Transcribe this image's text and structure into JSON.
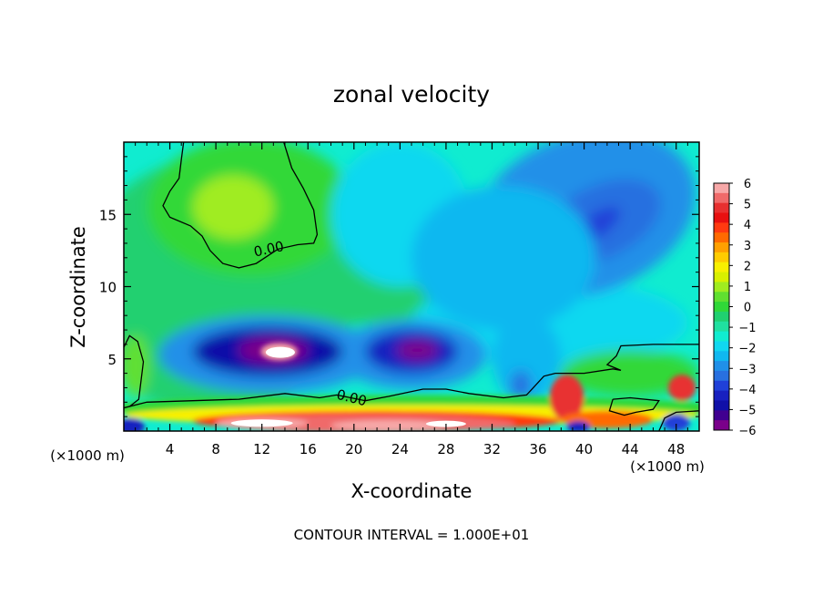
{
  "chart_data": {
    "type": "heatmap",
    "title": "zonal velocity",
    "xlabel": "X-coordinate",
    "ylabel": "Z-coordinate",
    "x_unit_note_left": "(×1000 m)",
    "x_unit_note_right": "(×1000 m)",
    "footer": "CONTOUR INTERVAL = 1.000E+01",
    "xlim": [
      0,
      50
    ],
    "ylim": [
      0,
      20
    ],
    "x_ticks": [
      4,
      8,
      12,
      16,
      20,
      24,
      28,
      32,
      36,
      40,
      44,
      48
    ],
    "y_ticks": [
      5,
      10,
      15
    ],
    "contour_labels": [
      {
        "text": "0.00",
        "x": 12.6,
        "y": 12.6
      },
      {
        "text": "0.00",
        "x": 19.8,
        "y": 2.3
      }
    ],
    "colorbar": {
      "ticks": [
        "6",
        "5",
        "4",
        "3",
        "2",
        "1",
        "0",
        "−1",
        "−2",
        "−3",
        "−4",
        "−5",
        "−6"
      ],
      "levels": [
        6,
        5.5,
        5,
        4.5,
        4,
        3.5,
        3,
        2.5,
        2,
        1.5,
        1,
        0.5,
        0,
        -0.5,
        -1,
        -1.5,
        -2,
        -2.5,
        -3,
        -3.5,
        -4,
        -4.5,
        -5,
        -5.5,
        -6
      ],
      "colors": [
        "#f7a8a8",
        "#f06a6a",
        "#e83030",
        "#e81010",
        "#ff3a10",
        "#ff6a00",
        "#ffa000",
        "#ffcc00",
        "#f8f000",
        "#d8f000",
        "#a0ec20",
        "#60e030",
        "#30d838",
        "#20d070",
        "#20e0a0",
        "#10ecd0",
        "#10d8f0",
        "#10b8f0",
        "#2090e8",
        "#2870e0",
        "#2040d8",
        "#1820c0",
        "#1010a8",
        "#400090",
        "#7a008a"
      ]
    },
    "features": [
      {
        "name": "upper-positive-region",
        "x": 10,
        "y": 15.5,
        "value": 1.2
      },
      {
        "name": "upper-right-negative-core",
        "x": 41,
        "y": 14.2,
        "value": -4.0
      },
      {
        "name": "jet-core-1",
        "x": 12.5,
        "y": 5.5,
        "value": -6.0
      },
      {
        "name": "jet-core-2",
        "x": 25.5,
        "y": 5.5,
        "value": -5.5
      },
      {
        "name": "surface-positive-layer",
        "x": 25,
        "y": 0.5,
        "value": 6.0
      }
    ]
  }
}
